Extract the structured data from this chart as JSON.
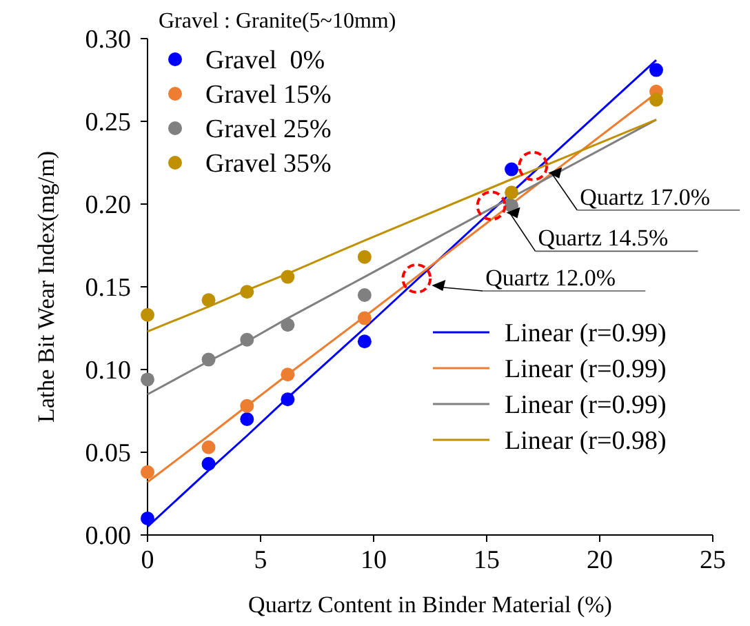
{
  "chart_data": {
    "type": "scatter",
    "xlabel": "Quartz Content in Binder Material (%)",
    "ylabel": "Lathe Bit Wear Index(mg/m)",
    "legend_title": "Gravel : Granite(5~10mm)",
    "xlim": [
      0,
      25
    ],
    "xticks": [
      0,
      5,
      10,
      15,
      20,
      25
    ],
    "ylim": [
      0,
      0.3
    ],
    "yticks": [
      {
        "value": 0,
        "label": "0.00"
      },
      {
        "value": 0.05,
        "label": "0.05"
      },
      {
        "value": 0.1,
        "label": "0.10"
      },
      {
        "value": 0.15,
        "label": "0.15"
      },
      {
        "value": 0.2,
        "label": "0.20"
      },
      {
        "value": 0.25,
        "label": "0.25"
      },
      {
        "value": 0.3,
        "label": "0.30"
      }
    ],
    "grid": false,
    "legend": "top left",
    "marker": "circle",
    "x": [
      0,
      2.7,
      4.4,
      6.2,
      9.6,
      16.1,
      22.5
    ],
    "series": [
      {
        "name": "Gravel  0%",
        "color": "#0000ff",
        "values": [
          0.01,
          0.043,
          0.07,
          0.082,
          0.117,
          0.221,
          0.281
        ]
      },
      {
        "name": "Gravel 15%",
        "color": "#ed7d31",
        "values": [
          0.038,
          0.053,
          0.078,
          0.097,
          0.131,
          null,
          0.268
        ]
      },
      {
        "name": "Gravel 25%",
        "color": "#808080",
        "values": [
          0.094,
          0.106,
          0.118,
          0.127,
          0.145,
          0.199,
          null
        ]
      },
      {
        "name": "Gravel 35%",
        "color": "#bf9000",
        "values": [
          0.133,
          0.142,
          0.147,
          0.156,
          0.168,
          0.207,
          0.263
        ]
      },
      {
        "type": "line",
        "name": "Linear (r=0.99)",
        "color": "#0000ff",
        "values": [
          0.005,
          0.039,
          0.06,
          0.083,
          0.125,
          0.207,
          0.287
        ],
        "marker": "none",
        "line_style": "solid"
      },
      {
        "type": "line",
        "name": "Linear (r=0.99)",
        "color": "#ed7d31",
        "values": [
          0.032,
          0.06,
          0.078,
          0.097,
          0.132,
          0.2,
          0.267
        ],
        "marker": "none",
        "line_style": "solid"
      },
      {
        "type": "line",
        "name": "Linear (r=0.99)",
        "color": "#808080",
        "values": [
          0.085,
          0.105,
          0.117,
          0.131,
          0.156,
          0.204,
          0.251
        ],
        "marker": "none",
        "line_style": "solid"
      },
      {
        "type": "line",
        "name": "Linear (r=0.98)",
        "color": "#bf9000",
        "values": [
          0.123,
          0.138,
          0.148,
          0.158,
          0.178,
          0.215,
          0.251
        ],
        "marker": "none",
        "line_style": "solid"
      }
    ],
    "annotations": [
      {
        "text": "Quartz 12.0%",
        "x": 11.9,
        "y": 0.155
      },
      {
        "text": "Quartz 14.5%",
        "x": 15.2,
        "y": 0.199
      },
      {
        "text": "Quartz 17.0%",
        "x": 17.05,
        "y": 0.223
      }
    ]
  }
}
